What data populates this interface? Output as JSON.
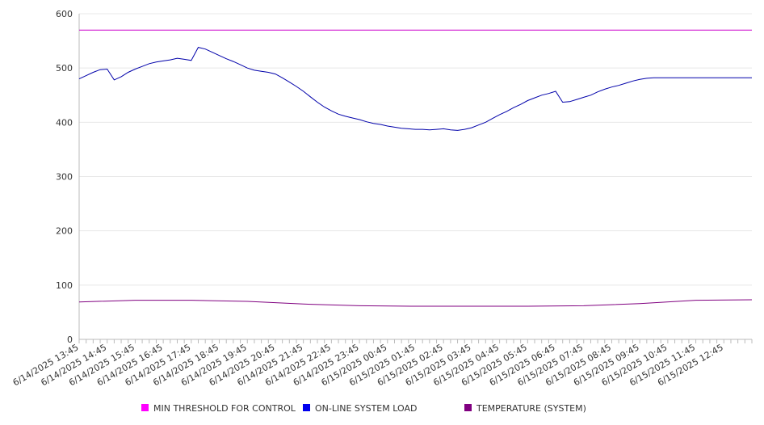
{
  "chart_data": {
    "type": "line",
    "title": "",
    "xlabel": "",
    "ylabel": "",
    "ylim": [
      0,
      600
    ],
    "yticks": [
      0,
      100,
      200,
      300,
      400,
      500,
      600
    ],
    "grid": true,
    "legend_position": "bottom",
    "x_tick_labels": [
      "6/14/2025 13:45",
      "6/14/2025 14:45",
      "6/14/2025 15:45",
      "6/14/2025 16:45",
      "6/14/2025 17:45",
      "6/14/2025 18:45",
      "6/14/2025 19:45",
      "6/14/2025 20:45",
      "6/14/2025 21:45",
      "6/14/2025 22:45",
      "6/14/2025 23:45",
      "6/15/2025 00:45",
      "6/15/2025 01:45",
      "6/15/2025 02:45",
      "6/15/2025 03:45",
      "6/15/2025 04:45",
      "6/15/2025 05:45",
      "6/15/2025 06:45",
      "6/15/2025 07:45",
      "6/15/2025 08:45",
      "6/15/2025 09:45",
      "6/15/2025 10:45",
      "6/15/2025 11:45",
      "6/15/2025 12:45"
    ],
    "x_start": "6/14/2025 13:45",
    "x_end": "6/15/2025 13:45",
    "series": [
      {
        "name": "MIN THRESHOLD FOR CONTROL",
        "color": "#ff00ff",
        "line_color": "#cc00cc",
        "x": [
          "6/14/2025 13:45",
          "6/15/2025 13:45"
        ],
        "values": [
          570,
          570
        ]
      },
      {
        "name": "ON-LINE SYSTEM LOAD",
        "color": "#0000ee",
        "line_color": "#0000aa",
        "x": [
          "6/14/2025 13:45",
          "6/14/2025 14:00",
          "6/14/2025 14:15",
          "6/14/2025 14:30",
          "6/14/2025 14:45",
          "6/14/2025 15:00",
          "6/14/2025 15:15",
          "6/14/2025 15:30",
          "6/14/2025 15:45",
          "6/14/2025 16:00",
          "6/14/2025 16:15",
          "6/14/2025 16:30",
          "6/14/2025 16:45",
          "6/14/2025 17:00",
          "6/14/2025 17:15",
          "6/14/2025 17:30",
          "6/14/2025 17:45",
          "6/14/2025 18:00",
          "6/14/2025 18:15",
          "6/14/2025 18:30",
          "6/14/2025 18:45",
          "6/14/2025 19:00",
          "6/14/2025 19:15",
          "6/14/2025 19:30",
          "6/14/2025 19:45",
          "6/14/2025 20:00",
          "6/14/2025 20:15",
          "6/14/2025 20:30",
          "6/14/2025 20:45",
          "6/14/2025 21:00",
          "6/14/2025 21:15",
          "6/14/2025 21:30",
          "6/14/2025 21:45",
          "6/14/2025 22:00",
          "6/14/2025 22:15",
          "6/14/2025 22:30",
          "6/14/2025 22:45",
          "6/14/2025 23:00",
          "6/14/2025 23:15",
          "6/14/2025 23:30",
          "6/14/2025 23:45",
          "6/15/2025 00:00",
          "6/15/2025 00:15",
          "6/15/2025 00:30",
          "6/15/2025 00:45",
          "6/15/2025 01:00",
          "6/15/2025 01:15",
          "6/15/2025 01:30",
          "6/15/2025 01:45",
          "6/15/2025 02:00",
          "6/15/2025 02:15",
          "6/15/2025 02:30",
          "6/15/2025 02:45",
          "6/15/2025 03:00",
          "6/15/2025 03:15",
          "6/15/2025 03:30",
          "6/15/2025 03:45",
          "6/15/2025 04:00",
          "6/15/2025 04:15",
          "6/15/2025 04:30",
          "6/15/2025 04:45",
          "6/15/2025 05:00",
          "6/15/2025 05:15",
          "6/15/2025 05:30",
          "6/15/2025 05:45",
          "6/15/2025 06:00",
          "6/15/2025 06:15",
          "6/15/2025 06:30",
          "6/15/2025 06:45",
          "6/15/2025 07:00",
          "6/15/2025 07:15",
          "6/15/2025 07:30",
          "6/15/2025 07:45",
          "6/15/2025 08:00",
          "6/15/2025 08:15",
          "6/15/2025 08:30",
          "6/15/2025 08:45",
          "6/15/2025 09:00",
          "6/15/2025 09:15",
          "6/15/2025 09:30",
          "6/15/2025 09:45",
          "6/15/2025 10:00",
          "6/15/2025 10:15",
          "6/15/2025 10:30",
          "6/15/2025 10:45",
          "6/15/2025 11:00",
          "6/15/2025 11:15",
          "6/15/2025 11:30",
          "6/15/2025 11:45",
          "6/15/2025 12:00",
          "6/15/2025 12:15",
          "6/15/2025 12:30",
          "6/15/2025 12:45",
          "6/15/2025 13:00",
          "6/15/2025 13:15",
          "6/15/2025 13:30",
          "6/15/2025 13:45"
        ],
        "values": [
          480,
          486,
          492,
          497,
          498,
          478,
          484,
          492,
          498,
          503,
          508,
          511,
          513,
          515,
          518,
          516,
          514,
          538,
          535,
          529,
          523,
          517,
          512,
          506,
          500,
          496,
          494,
          492,
          489,
          482,
          474,
          466,
          457,
          447,
          437,
          428,
          421,
          415,
          411,
          408,
          405,
          401,
          398,
          396,
          393,
          391,
          389,
          388,
          387,
          387,
          386,
          387,
          388,
          386,
          385,
          387,
          390,
          395,
          400,
          407,
          414,
          420,
          427,
          433,
          440,
          445,
          450,
          453,
          457,
          437,
          438,
          442,
          446,
          450,
          456,
          461,
          465,
          468,
          472,
          476,
          479,
          481,
          482,
          482,
          482,
          482,
          482,
          482,
          482,
          482,
          482,
          482,
          482,
          482,
          482,
          482,
          482
        ]
      },
      {
        "name": "TEMPERATURE (SYSTEM)",
        "color": "#800080",
        "line_color": "#800080",
        "x": [
          "6/14/2025 13:45",
          "6/14/2025 15:45",
          "6/14/2025 17:45",
          "6/14/2025 19:45",
          "6/14/2025 21:45",
          "6/14/2025 23:45",
          "6/15/2025 01:45",
          "6/15/2025 03:45",
          "6/15/2025 05:45",
          "6/15/2025 07:45",
          "6/15/2025 09:45",
          "6/15/2025 11:45",
          "6/15/2025 13:45"
        ],
        "values": [
          69,
          72,
          72,
          70,
          65,
          62,
          61,
          61,
          61,
          62,
          66,
          72,
          73
        ]
      }
    ]
  }
}
